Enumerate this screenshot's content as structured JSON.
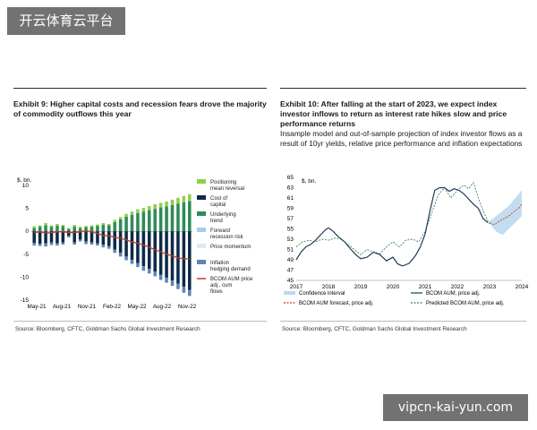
{
  "watermarks": {
    "top": "开云体育云平台",
    "bottom": "vipcn-kai-yun.com"
  },
  "chart_data": [
    {
      "type": "bar",
      "title": "Exhibit 9: Higher capital costs and recession fears drove the majority of commodity outflows this year",
      "ylabel": "$, bn.",
      "ylim": [
        -15,
        10
      ],
      "yticks": [
        10,
        5,
        0,
        -5,
        -10,
        -15
      ],
      "xtick_labels": [
        "May-21",
        "Aug-21",
        "Nov-21",
        "Feb-22",
        "May-22",
        "Aug-22",
        "Nov-22"
      ],
      "colors": {
        "positioning": "#8fcf4a",
        "cost_of_capital": "#0d2a47",
        "underlying_trend": "#2e8b57",
        "forward_recession": "#a9cbe6",
        "price_momentum": "#dde9f3",
        "inflation_hedging": "#5b86b4",
        "bcom_line": "#c0392b"
      },
      "legend": [
        "Positioning mean reversal",
        "Cost of capital",
        "Underlying trend",
        "Forward recession risk",
        "Price momentum",
        "Inflation hedging demand",
        "BCOM AUM price adj., cum flows"
      ],
      "series": [
        {
          "name": "Positioning mean reversal",
          "values": [
            0.4,
            0.3,
            0.5,
            0.3,
            0.4,
            0.3,
            0.2,
            0.4,
            0.3,
            0.3,
            0.3,
            0.3,
            0.4,
            0.3,
            0.5,
            0.5,
            0.6,
            0.7,
            0.8,
            0.8,
            0.9,
            1.0,
            1.0,
            1.1,
            1.2,
            1.3,
            1.4,
            1.5
          ]
        },
        {
          "name": "Underlying trend",
          "values": [
            0.7,
            1.0,
            1.3,
            1.0,
            1.2,
            1.1,
            0.5,
            1.0,
            0.7,
            0.9,
            1.0,
            1.2,
            1.4,
            1.3,
            2.0,
            2.6,
            3.2,
            3.6,
            4.0,
            4.3,
            4.6,
            4.9,
            5.2,
            5.4,
            5.7,
            6.0,
            6.3,
            6.6
          ]
        },
        {
          "name": "Cost of capital",
          "values": [
            -2.5,
            -2.7,
            -2.6,
            -2.4,
            -2.6,
            -2.4,
            -1.0,
            -2.4,
            -1.8,
            -2.2,
            -2.4,
            -2.6,
            -2.9,
            -3.2,
            -4.0,
            -4.7,
            -5.5,
            -6.2,
            -6.9,
            -7.6,
            -8.2,
            -8.8,
            -9.5,
            -10.1,
            -10.7,
            -11.4,
            -12.1,
            -12.8
          ]
        },
        {
          "name": "Inflation hedging demand",
          "values": [
            -0.6,
            -0.5,
            -0.7,
            -0.6,
            -0.5,
            -0.5,
            -0.3,
            -0.5,
            -0.4,
            -0.6,
            -0.5,
            -0.5,
            -0.6,
            -0.6,
            -0.7,
            -0.8,
            -0.8,
            -0.9,
            -0.9,
            -1.0,
            -1.0,
            -1.0,
            -1.1,
            -1.1,
            -1.2,
            -1.2,
            -1.3,
            -1.3
          ]
        },
        {
          "name": "BCOM AUM price adj., cum flows",
          "values": [
            -0.3,
            -0.1,
            -0.4,
            -0.3,
            -0.1,
            -0.1,
            -0.3,
            -0.3,
            -0.1,
            0.1,
            -0.1,
            -0.5,
            -0.9,
            -1.0,
            -1.3,
            -1.5,
            -1.9,
            -2.3,
            -2.6,
            -3.0,
            -3.5,
            -4.0,
            -4.5,
            -5.0,
            -5.4,
            -5.8,
            -6.0,
            -6.0
          ]
        }
      ],
      "source": "Source: Bloomberg, CFTC, Goldman Sachs Global Investment Research"
    },
    {
      "type": "line",
      "title": "Exhibit 10: After falling at the start of 2023, we expect index investor inflows to return as interest rate hikes slow and price performance returns",
      "subtitle": "Insample model and out-of-sample projection of index investor flows as a result of 10yr yields, relative price performance and inflation expectations",
      "ylabel": "$, bn.",
      "ylim": [
        45,
        65
      ],
      "yticks": [
        65,
        63,
        61,
        59,
        57,
        55,
        53,
        51,
        49,
        47,
        45
      ],
      "xlim": [
        2017,
        2024
      ],
      "xticks": [
        2017,
        2018,
        2019,
        2020,
        2021,
        2022,
        2023,
        2024
      ],
      "colors": {
        "interval": "#bcd9ee",
        "actual": "#1f3b5c",
        "bcom_fc": "#c0392b",
        "predicted": "#2e8b57"
      },
      "legend": [
        "Confidence interval",
        "BCOM AUM, price adj.",
        "BCOM AUM forecast, price adj.",
        "Predicted BCOM AUM, price adj."
      ],
      "actual": {
        "x": [
          2017.0,
          2017.15,
          2017.3,
          2017.45,
          2017.6,
          2017.75,
          2017.9,
          2018.0,
          2018.15,
          2018.3,
          2018.5,
          2018.7,
          2018.85,
          2019.0,
          2019.2,
          2019.4,
          2019.6,
          2019.8,
          2020.0,
          2020.15,
          2020.3,
          2020.5,
          2020.7,
          2020.85,
          2021.0,
          2021.15,
          2021.3,
          2021.45,
          2021.6,
          2021.75,
          2021.9,
          2022.05,
          2022.2,
          2022.35,
          2022.5,
          2022.65,
          2022.8,
          2022.95
        ],
        "y": [
          49.0,
          50.5,
          51.5,
          52.0,
          52.8,
          53.8,
          54.8,
          55.2,
          54.5,
          53.5,
          52.5,
          51.0,
          50.0,
          49.2,
          49.5,
          50.5,
          50.0,
          48.8,
          49.5,
          48.2,
          47.8,
          48.3,
          49.8,
          51.5,
          54.0,
          58.5,
          62.5,
          63.0,
          63.0,
          62.3,
          62.8,
          62.5,
          61.8,
          60.8,
          59.8,
          59.0,
          57.0,
          56.2
        ]
      },
      "predicted": {
        "x": [
          2017.0,
          2017.2,
          2017.4,
          2017.6,
          2017.8,
          2018.0,
          2018.2,
          2018.4,
          2018.6,
          2018.8,
          2019.0,
          2019.2,
          2019.4,
          2019.6,
          2019.8,
          2020.0,
          2020.2,
          2020.4,
          2020.6,
          2020.8,
          2021.0,
          2021.2,
          2021.4,
          2021.6,
          2021.8,
          2022.0,
          2022.2,
          2022.35,
          2022.5,
          2022.65,
          2022.8,
          2022.95,
          2023.0
        ],
        "y": [
          51.5,
          52.5,
          52.8,
          52.5,
          53.0,
          52.8,
          53.2,
          53.0,
          52.0,
          51.0,
          50.0,
          51.0,
          50.5,
          50.2,
          51.5,
          52.5,
          51.5,
          52.8,
          53.0,
          52.5,
          54.5,
          58.0,
          61.5,
          63.0,
          61.0,
          62.5,
          63.5,
          62.8,
          64.0,
          61.0,
          58.5,
          56.5,
          56.0
        ]
      },
      "forecast": {
        "x": [
          2023.0,
          2023.15,
          2023.3,
          2023.45,
          2023.6,
          2023.75,
          2023.9,
          2024.0
        ],
        "y": [
          56.2,
          55.8,
          56.5,
          57.0,
          57.5,
          58.3,
          59.0,
          59.8
        ]
      },
      "interval": {
        "x": [
          2023.0,
          2023.2,
          2023.4,
          2023.6,
          2023.8,
          2024.0
        ],
        "lower": [
          56.0,
          54.5,
          53.8,
          55.0,
          56.2,
          57.5
        ],
        "upper": [
          56.5,
          57.5,
          58.5,
          59.5,
          61.0,
          62.5
        ]
      },
      "source": "Source: Bloomberg, CFTC, Goldman Sachs Global Investment Research"
    }
  ]
}
